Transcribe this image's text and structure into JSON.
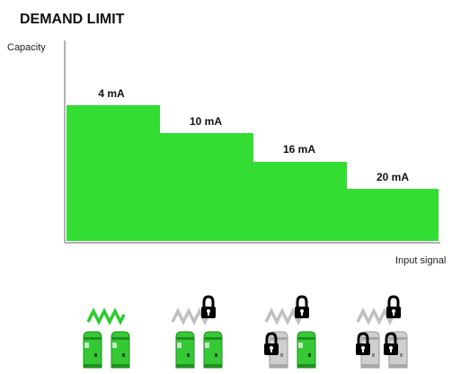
{
  "title": "DEMAND LIMIT",
  "y_axis_label": "Capacity",
  "x_axis_label": "Input signal",
  "steps": [
    {
      "label": "4 mA"
    },
    {
      "label": "10 mA"
    },
    {
      "label": "16 mA"
    },
    {
      "label": "20 mA"
    }
  ]
}
